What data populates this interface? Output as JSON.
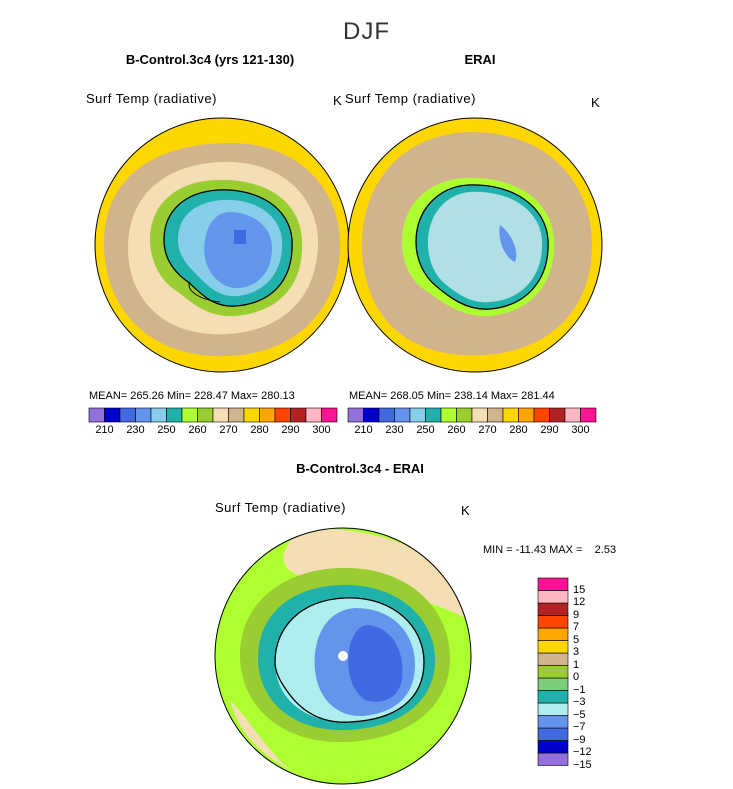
{
  "season": "DJF",
  "panels": [
    {
      "title": "B-Control.3c4 (yrs 121-130)",
      "variable": "Surf Temp (radiative)",
      "units": "K",
      "stats": "MEAN= 265.26   Min= 228.47   Max= 280.13"
    },
    {
      "title": "ERAI",
      "variable": "Surf Temp (radiative)",
      "units": "K",
      "stats": "MEAN= 268.05   Min= 238.14   Max= 281.44"
    }
  ],
  "abs_colorbar": {
    "colors": [
      "#9370DB",
      "#0000CD",
      "#4169E1",
      "#6495ED",
      "#87CEEB",
      "#20B2AA",
      "#ADFF2F",
      "#9ACD32",
      "#F5DEB3",
      "#D2B48C",
      "#FFD700",
      "#FFA500",
      "#FF4500",
      "#B22222",
      "#FFB6C1",
      "#FF1493"
    ],
    "tick_labels": [
      "210",
      "230",
      "250",
      "260",
      "270",
      "280",
      "290",
      "300"
    ]
  },
  "diff_panel": {
    "title": "B-Control.3c4 - ERAI",
    "variable": "Surf Temp (radiative)",
    "units": "K",
    "minmax": "MIN = -11.43 MAX =    2.53",
    "colorbar_colors": [
      "#9370DB",
      "#0000CD",
      "#4169E1",
      "#6495ED",
      "#AFEEEE",
      "#20B2AA",
      "#7CCD7C",
      "#9ACD32",
      "#D2B48C",
      "#FFD700",
      "#FFA500",
      "#FF4500",
      "#B22222",
      "#FFB6C1",
      "#FF1493"
    ],
    "colorbar_labels": [
      "15",
      "12",
      "9",
      "7",
      "5",
      "3",
      "1",
      "0",
      "−1",
      "−3",
      "−5",
      "−7",
      "−9",
      "−12",
      "−15"
    ]
  }
}
